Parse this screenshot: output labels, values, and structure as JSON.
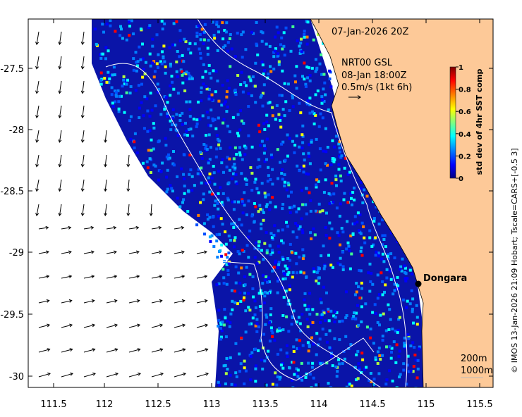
{
  "title_date": "07-Jan-2026 20Z",
  "wind": {
    "model": "NRT00 GSL",
    "valid": "08-Jan 18:00Z",
    "scale": "0.5m/s (1kt 6h)"
  },
  "colorbar": {
    "label": "std dev of 4hr SST comp",
    "ticks": [
      "0",
      "0.2",
      "0.4",
      "0.6",
      "0.8",
      "1"
    ],
    "colors": [
      "#00007f",
      "#0000ff",
      "#007fff",
      "#00ffff",
      "#7fff7f",
      "#ffff00",
      "#ff7f00",
      "#ff0000",
      "#7f0000"
    ]
  },
  "x_ticks": [
    "111.5",
    "112",
    "112.5",
    "113",
    "113.5",
    "114",
    "114.5",
    "115",
    "115.5"
  ],
  "y_ticks": [
    "-27.5",
    "-28",
    "-28.5",
    "-29",
    "-29.5",
    "-30"
  ],
  "place": {
    "name": "Dongara"
  },
  "contours": {
    "shallow": "200m",
    "deep": "1000m"
  },
  "credit": "© IMOS 13-Jan-2026 21:09 Hobart; Tscale=CARS+[-0.5 3]",
  "colors": {
    "land": "#fdc998",
    "ocean_bg": "#0a14a8",
    "frame": "#000000"
  }
}
